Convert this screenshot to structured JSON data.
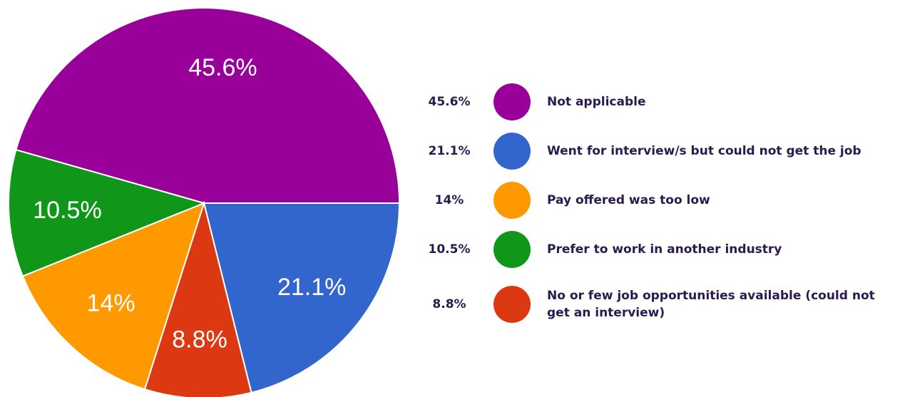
{
  "chart_data": {
    "type": "pie",
    "title": "",
    "slices": [
      {
        "label": "Not applicable",
        "value": 45.6,
        "value_label": "45.6%",
        "color": "#990099"
      },
      {
        "label": "Went for interview/s but could not get the job",
        "value": 21.1,
        "value_label": "21.1%",
        "color": "#3366CC"
      },
      {
        "label": "No or few job opportunities available (could not get an interview)",
        "value": 8.8,
        "value_label": "8.8%",
        "color": "#DC3912"
      },
      {
        "label": "Pay offered was too low",
        "value": 14,
        "value_label": "14%",
        "color": "#FF9900"
      },
      {
        "label": "Prefer to work in another industry",
        "value": 10.5,
        "value_label": "10.5%",
        "color": "#109618"
      }
    ],
    "legend": [
      {
        "pct": "45.6%",
        "label": "Not applicable",
        "color": "#990099"
      },
      {
        "pct": "21.1%",
        "label": "Went for interview/s but could not get the job",
        "color": "#3366CC"
      },
      {
        "pct": "14%",
        "label": "Pay offered was too low",
        "color": "#FF9900"
      },
      {
        "pct": "10.5%",
        "label": "Prefer to work in another industry",
        "color": "#109618"
      },
      {
        "pct": "8.8%",
        "label": "No or few job opportunities available (could not get an interview)",
        "color": "#DC3912"
      }
    ],
    "legend_position": "right"
  }
}
